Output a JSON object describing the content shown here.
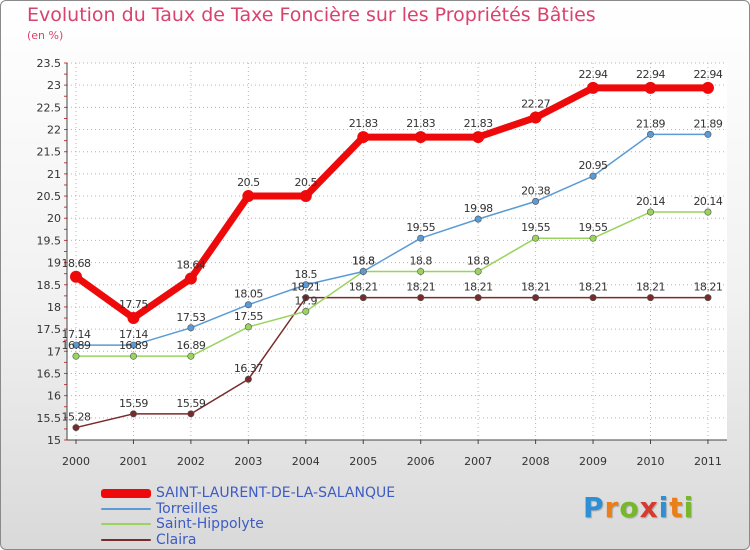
{
  "title": "Evolution du Taux de Taxe Foncière sur les Propriétés Bâties",
  "subtitle": "(en %)",
  "logo": {
    "letters": [
      "P",
      "r",
      "o",
      "x",
      "i",
      "t",
      "i"
    ],
    "colors": [
      "#2d8fd5",
      "#ea7f18",
      "#76b82a",
      "#d63a2f",
      "#2d8fd5",
      "#ea7f18",
      "#76b82a"
    ]
  },
  "chart_data": {
    "type": "line",
    "title": "Evolution du Taux de Taxe Foncière sur les Propriétés Bâties",
    "ylabel": "(en %)",
    "ylim": [
      15,
      23.5
    ],
    "yticks": [
      "15",
      "15.5",
      "16",
      "16.5",
      "17",
      "17.5",
      "18",
      "18.5",
      "19",
      "19.5",
      "20",
      "20.5",
      "21",
      "21.5",
      "22",
      "22.5",
      "23",
      "23.5"
    ],
    "categories": [
      "2000",
      "2001",
      "2002",
      "2003",
      "2004",
      "2005",
      "2006",
      "2007",
      "2008",
      "2009",
      "2010",
      "2011"
    ],
    "series": [
      {
        "name": "SAINT-LAURENT-DE-LA-SALANQUE",
        "color": "#ee0a0a",
        "values": [
          18.68,
          17.75,
          18.64,
          20.5,
          20.5,
          21.83,
          21.83,
          21.83,
          22.27,
          22.94,
          22.94,
          22.94
        ],
        "labels": [
          "18.68",
          "17.75",
          "18.64",
          "20.5",
          "20.5",
          "21.83",
          "21.83",
          "21.83",
          "22.27",
          "22.94",
          "22.94",
          "22.94"
        ]
      },
      {
        "name": "Torreilles",
        "color": "#5b9bd5",
        "values": [
          17.14,
          17.14,
          17.53,
          18.05,
          18.5,
          18.8,
          19.55,
          19.98,
          20.38,
          20.95,
          21.89,
          21.89
        ],
        "labels": [
          "17.14",
          "17.14",
          "17.53",
          "18.05",
          "18.5",
          "18.8",
          "19.55",
          "19.98",
          "20.38",
          "20.95",
          "21.89",
          "21.89"
        ]
      },
      {
        "name": "Saint-Hippolyte",
        "color": "#9ad45e",
        "values": [
          16.89,
          16.89,
          16.89,
          17.55,
          17.9,
          18.8,
          18.8,
          18.8,
          19.55,
          19.55,
          20.14,
          20.14
        ],
        "labels": [
          "16.89",
          "16.89",
          "16.89",
          "17.55",
          "17.9",
          "18.8",
          "18.8",
          "18.8",
          "19.55",
          "19.55",
          "20.14",
          "20.14"
        ]
      },
      {
        "name": "Claira",
        "color": "#7a2a2a",
        "values": [
          15.28,
          15.59,
          15.59,
          16.37,
          18.21,
          18.21,
          18.21,
          18.21,
          18.21,
          18.21,
          18.21,
          18.21
        ],
        "labels": [
          "15.28",
          "15.59",
          "15.59",
          "16.37",
          "18.21",
          "18.21",
          "18.21",
          "18.21",
          "18.21",
          "18.21",
          "18.21",
          "18.21"
        ]
      }
    ]
  }
}
